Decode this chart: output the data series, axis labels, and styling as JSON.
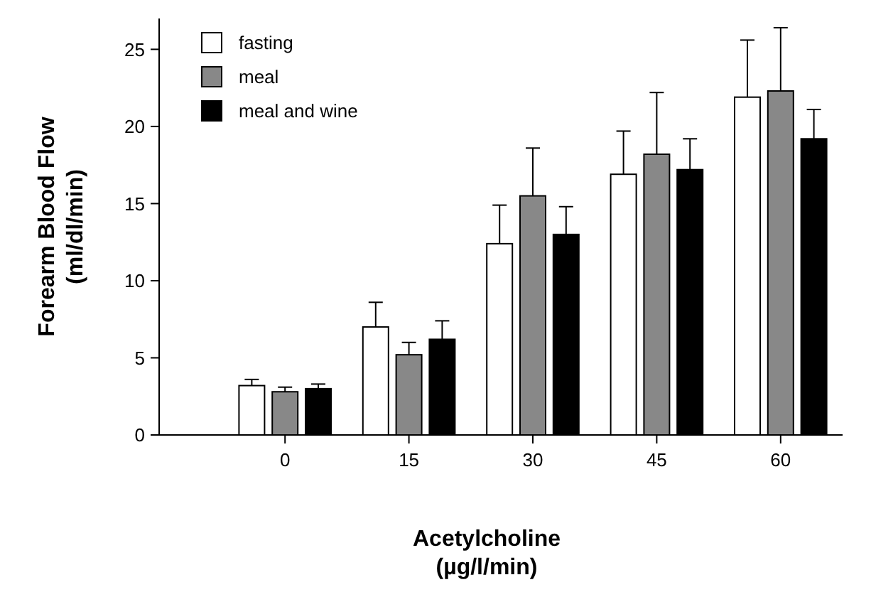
{
  "chart_data": {
    "type": "bar",
    "xlabel": "Acetylcholine\n(µg/l/min)",
    "ylabel": "Forearm Blood Flow\n(ml/dl/min)",
    "categories": [
      "0",
      "15",
      "30",
      "45",
      "60"
    ],
    "ylim": [
      0,
      27
    ],
    "yticks": [
      0,
      5,
      10,
      15,
      20,
      25
    ],
    "legend": "top left",
    "grid": false,
    "series": [
      {
        "name": "fasting",
        "color": "#ffffff",
        "values": [
          3.2,
          7.0,
          12.4,
          16.9,
          21.9
        ],
        "errors": [
          [
            3.2,
            3.6
          ],
          [
            7.0,
            8.6
          ],
          [
            12.4,
            14.9
          ],
          [
            16.9,
            19.7
          ],
          [
            21.9,
            25.6
          ]
        ]
      },
      {
        "name": "meal",
        "color": "#888888",
        "values": [
          2.8,
          5.2,
          15.5,
          18.2,
          22.3
        ],
        "errors": [
          [
            2.8,
            3.1
          ],
          [
            5.2,
            6.0
          ],
          [
            15.5,
            18.6
          ],
          [
            18.2,
            22.2
          ],
          [
            22.3,
            26.4
          ]
        ]
      },
      {
        "name": "meal and wine",
        "color": "#000000",
        "values": [
          3.0,
          6.2,
          13.0,
          17.2,
          19.2
        ],
        "errors": [
          [
            3.0,
            3.3
          ],
          [
            6.2,
            7.4
          ],
          [
            13.0,
            14.8
          ],
          [
            17.2,
            19.2
          ],
          [
            19.2,
            21.1
          ]
        ]
      }
    ]
  }
}
